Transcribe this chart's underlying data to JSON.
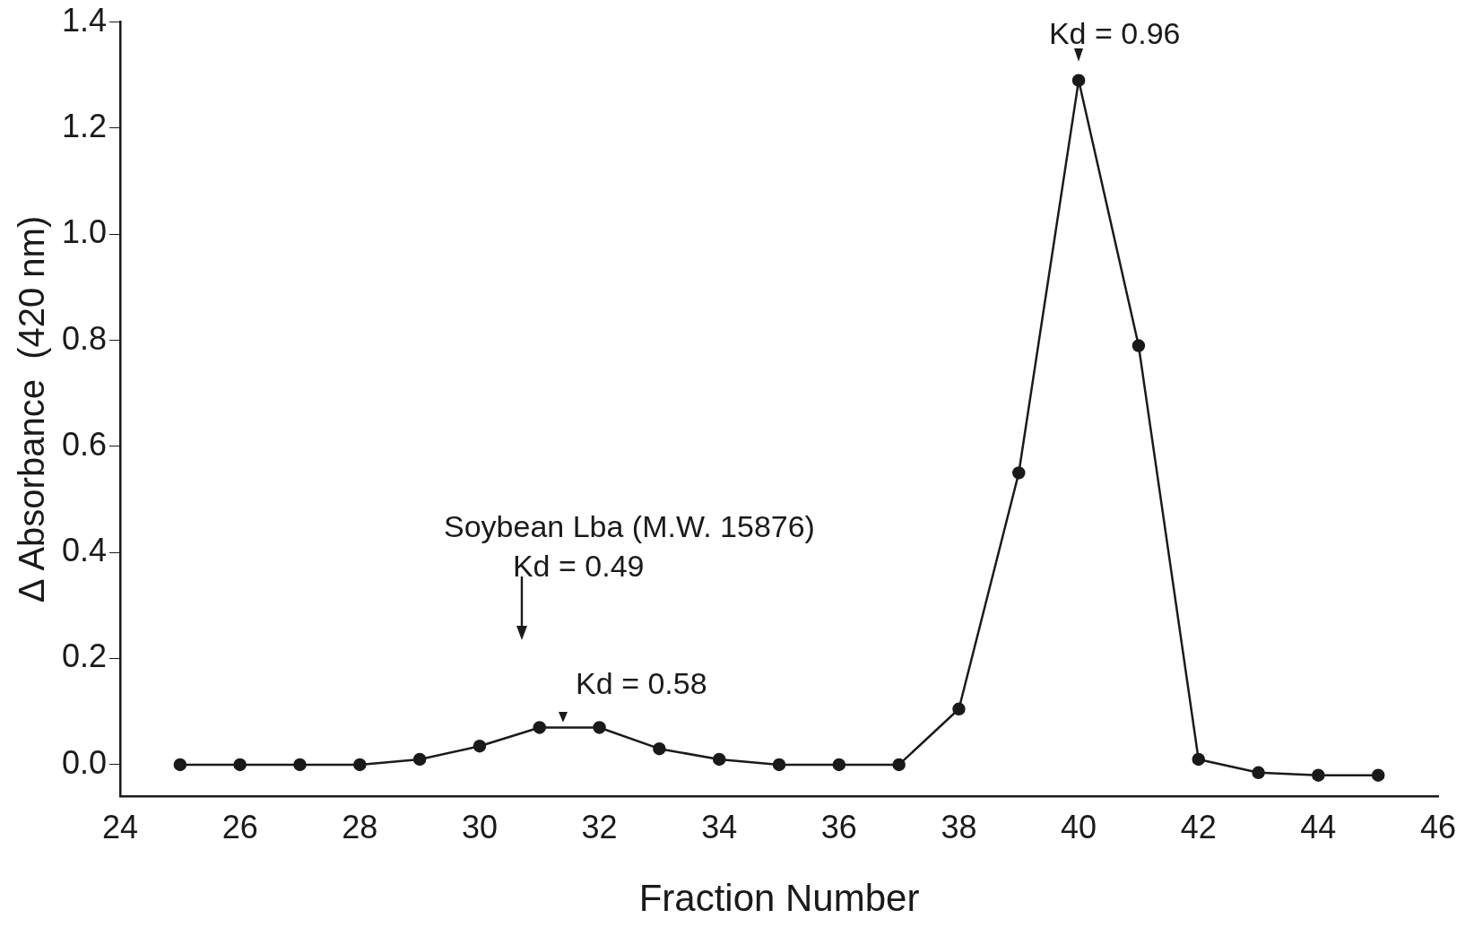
{
  "chart_data": {
    "type": "line",
    "xlabel": "Fraction Number",
    "ylabel": "Δ Absorbance  (420 nm)",
    "x": [
      25,
      26,
      27,
      28,
      29,
      30,
      31,
      32,
      33,
      34,
      35,
      36,
      37,
      38,
      39,
      40,
      41,
      42,
      43,
      44,
      45
    ],
    "series": [
      {
        "color": "#1a1a1a",
        "values": [
          0.0,
          0.0,
          0.0,
          0.0,
          0.01,
          0.035,
          0.07,
          0.07,
          0.03,
          0.01,
          0.0,
          0.0,
          0.0,
          0.105,
          0.55,
          1.29,
          0.79,
          0.01,
          -0.015,
          -0.02,
          -0.02
        ]
      }
    ],
    "xlim": [
      24,
      46
    ],
    "xticks": [
      24,
      26,
      28,
      30,
      32,
      34,
      36,
      38,
      40,
      42,
      44,
      46
    ],
    "ylim": [
      -0.06,
      1.4
    ],
    "yticks": [
      {
        "value": 0,
        "label": "0.0"
      },
      {
        "value": 0.2,
        "label": "0.2"
      },
      {
        "value": 0.4,
        "label": "0.4"
      },
      {
        "value": 0.6,
        "label": "0.6"
      },
      {
        "value": 0.8,
        "label": "0.8"
      },
      {
        "value": 1.0,
        "label": "1.0"
      },
      {
        "value": 1.2,
        "label": "1.2"
      },
      {
        "value": 1.4,
        "label": "1.4"
      }
    ],
    "annotations": [
      "Soybean Lba (M.W. 15876)",
      "Kd = 0.49",
      "Kd = 0.58",
      "Kd = 0.96"
    ],
    "grid": false,
    "legend": false,
    "marker": "circle",
    "line_style": "solid"
  }
}
